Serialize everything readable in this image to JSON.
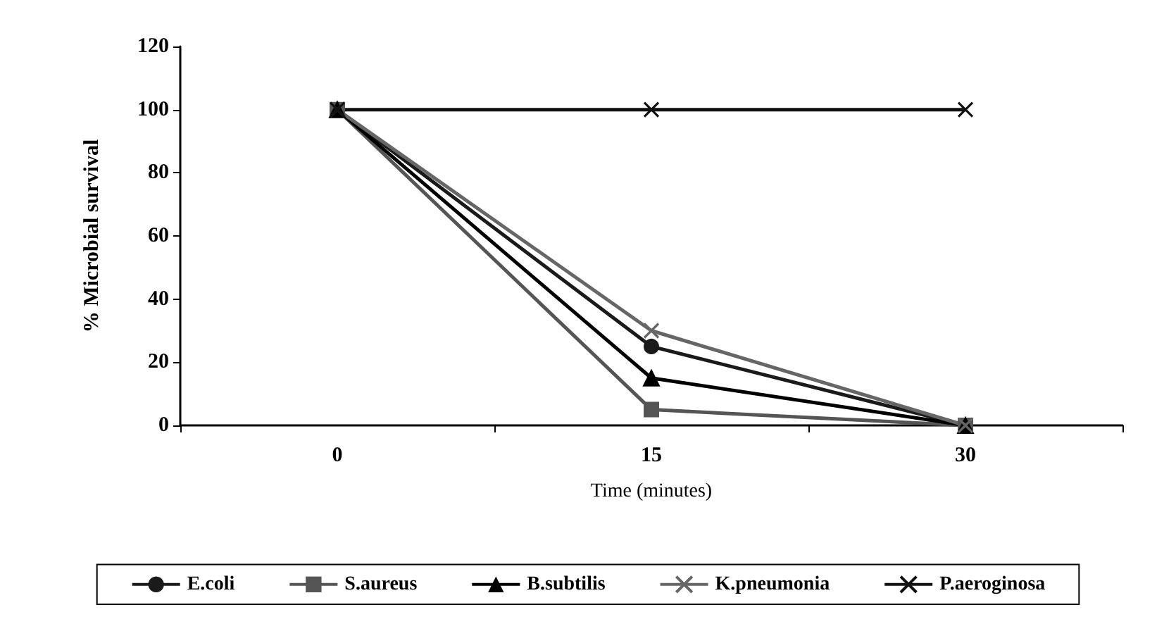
{
  "chart_data": {
    "type": "line",
    "xlabel": "Time (minutes)",
    "ylabel": "% Microbial survival",
    "categories": [
      "0",
      "15",
      "30"
    ],
    "ylim": [
      0,
      120
    ],
    "yticks": [
      0,
      20,
      40,
      60,
      80,
      100,
      120
    ],
    "grid": false,
    "legend": "bottom",
    "line_style": "solid",
    "series": [
      {
        "name": "E.coli",
        "color": "#1a1a1a",
        "marker": "circle",
        "values": [
          100,
          25,
          0
        ]
      },
      {
        "name": "S.aureus",
        "color": "#555555",
        "marker": "square",
        "values": [
          100,
          5,
          0
        ]
      },
      {
        "name": "B.subtilis",
        "color": "#000000",
        "marker": "triangle",
        "values": [
          100,
          15,
          0
        ]
      },
      {
        "name": "K.pneumonia",
        "color": "#666666",
        "marker": "cross",
        "values": [
          100,
          30,
          0
        ]
      },
      {
        "name": "P.aeroginosa",
        "color": "#111111",
        "marker": "cross",
        "values": [
          100,
          100,
          100
        ]
      }
    ]
  }
}
